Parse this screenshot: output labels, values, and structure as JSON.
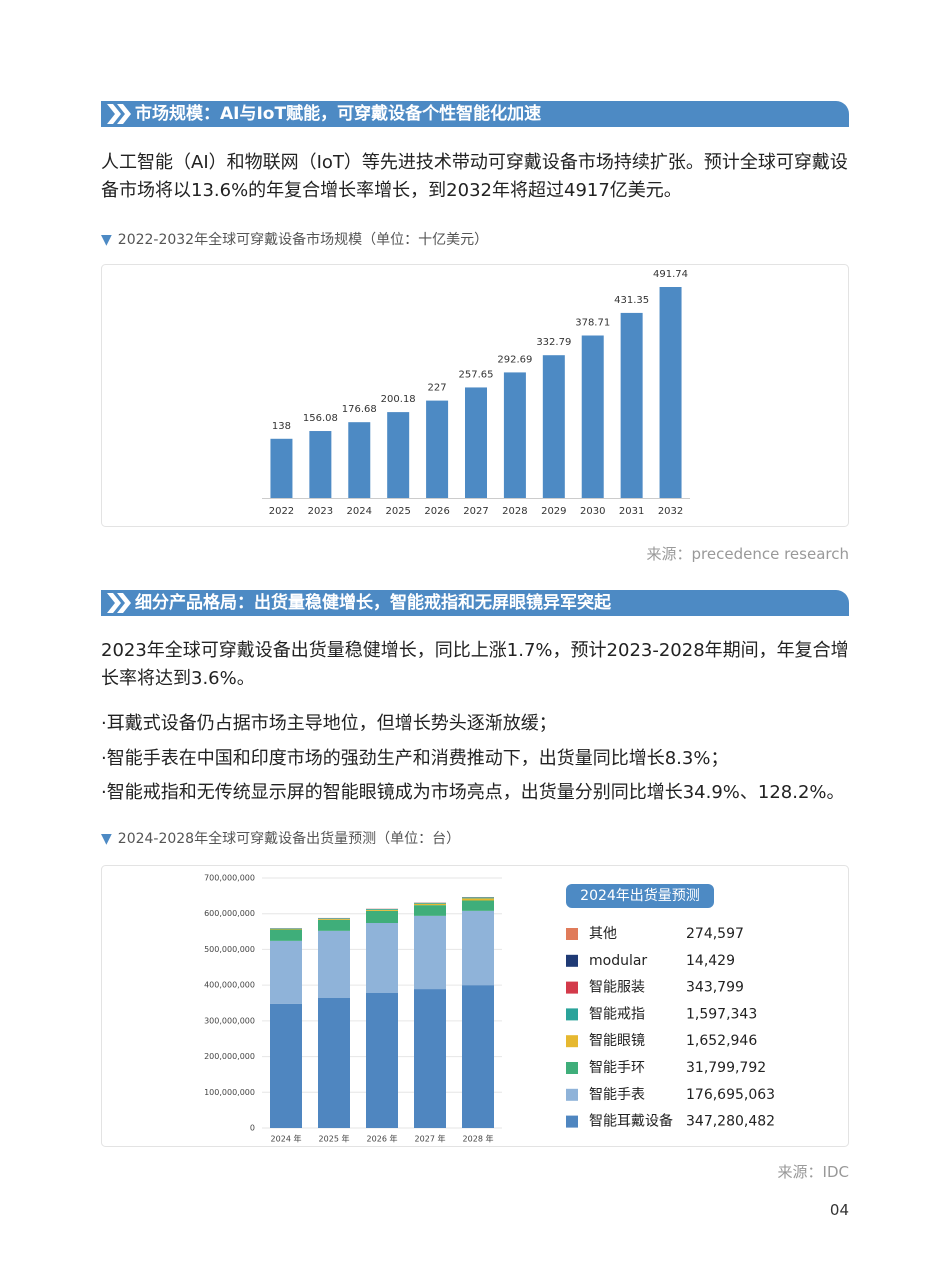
{
  "sections": [
    {
      "heading": "市场规模：AI与IoT赋能，可穿戴设备个性智能化加速",
      "paragraphs": [
        "人工智能（AI）和物联网（IoT）等先进技术带动可穿戴设备市场持续扩张。预计全球可穿戴设备市场将以13.6%的年复合增长率增长，到2032年将超过4917亿美元。"
      ]
    },
    {
      "heading": "细分产品格局：出货量稳健增长，智能戒指和无屏眼镜异军突起",
      "paragraphs": [
        "2023年全球可穿戴设备出货量稳健增长，同比上涨1.7%，预计2023-2028年期间，年复合增长率将达到3.6%。"
      ],
      "bullets": [
        "·耳戴式设备仍占据市场主导地位，但增长势头逐渐放缓；",
        "·智能手表在中国和印度市场的强劲生产和消费推动下，出货量同比增长8.3%；",
        "·智能戒指和无传统显示屏的智能眼镜成为市场亮点，出货量分别同比增长34.9%、128.2%。"
      ]
    }
  ],
  "chart_data": [
    {
      "type": "bar",
      "title": "2022-2032年全球可穿戴设备市场规模（单位：十亿美元）",
      "color": "#4d8ac4",
      "categories": [
        "2022",
        "2023",
        "2024",
        "2025",
        "2026",
        "2027",
        "2028",
        "2029",
        "2030",
        "2031",
        "2032"
      ],
      "values": [
        138,
        156.08,
        176.68,
        200.18,
        227,
        257.65,
        292.69,
        332.79,
        378.71,
        431.35,
        491.74
      ]
    },
    {
      "type": "stacked_bar",
      "title": "2024-2028年全球可穿戴设备出货量预测（单位：台）",
      "legend_title": "2024年出货量预测",
      "grid": true,
      "categories": [
        "2024 年",
        "2025 年",
        "2026 年",
        "2027 年",
        "2028 年"
      ],
      "ylim": [
        0,
        700000000
      ],
      "yticks": [
        0,
        {
          "value": 100000000,
          "label": "100,000,000"
        },
        {
          "value": 200000000,
          "label": "200,000,000"
        },
        {
          "value": 300000000,
          "label": "300,000,000"
        },
        {
          "value": 400000000,
          "label": "400,000,000"
        },
        {
          "value": 500000000,
          "label": "500,000,000"
        },
        {
          "value": 600000000,
          "label": "600,000,000"
        },
        {
          "value": 700000000,
          "label": "700,000,000"
        }
      ],
      "series": [
        {
          "name": "智能耳戴设备",
          "color": "#4f86c0",
          "values": [
            347280482,
            364000000,
            378000000,
            389000000,
            400000000
          ],
          "value_labels": [
            "347,280,482",
            null,
            null,
            null,
            null
          ]
        },
        {
          "name": "智能手表",
          "color": "#8fb3d9",
          "values": [
            176695063,
            188000000,
            196000000,
            205000000,
            208000000
          ],
          "value_labels": [
            "176,695,063",
            null,
            null,
            null,
            null
          ]
        },
        {
          "name": "智能手环",
          "color": "#3fae7a",
          "values": [
            31799792,
            31000000,
            34000000,
            30000000,
            29000000
          ],
          "value_labels": [
            "31,799,792",
            null,
            null,
            null,
            null
          ]
        },
        {
          "name": "智能眼镜",
          "color": "#e6b830",
          "values": [
            1652946,
            2500000,
            3000000,
            4000000,
            6000000
          ],
          "value_labels": [
            "1,652,946",
            null,
            null,
            null,
            null
          ]
        },
        {
          "name": "智能戒指",
          "color": "#2aa39a",
          "values": [
            1597343,
            2000000,
            2300000,
            2600000,
            3000000
          ],
          "value_labels": [
            "1,597,343",
            null,
            null,
            null,
            null
          ]
        },
        {
          "name": "智能服装",
          "color": "#d33a4a",
          "values": [
            343799,
            380000,
            420000,
            460000,
            500000
          ],
          "value_labels": [
            "343,799",
            null,
            null,
            null,
            null
          ]
        },
        {
          "name": "modular",
          "color": "#1f3a75",
          "values": [
            14429,
            13000,
            12000,
            11000,
            10000
          ],
          "value_labels": [
            "14,429",
            null,
            null,
            null,
            null
          ]
        },
        {
          "name": "其他",
          "color": "#e07b5a",
          "values": [
            274597,
            280000,
            290000,
            300000,
            310000
          ],
          "value_labels": [
            "274,597",
            null,
            null,
            null,
            null
          ]
        }
      ]
    }
  ],
  "sources": [
    "来源：precedence research",
    "来源：IDC"
  ],
  "page_number": "04"
}
